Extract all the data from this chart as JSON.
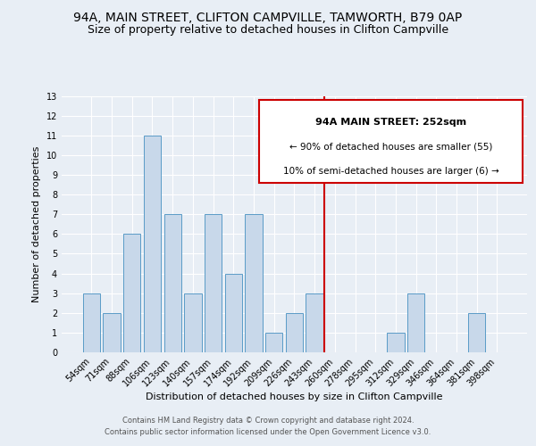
{
  "title": "94A, MAIN STREET, CLIFTON CAMPVILLE, TAMWORTH, B79 0AP",
  "subtitle": "Size of property relative to detached houses in Clifton Campville",
  "xlabel": "Distribution of detached houses by size in Clifton Campville",
  "ylabel": "Number of detached properties",
  "bin_labels": [
    "54sqm",
    "71sqm",
    "88sqm",
    "106sqm",
    "123sqm",
    "140sqm",
    "157sqm",
    "174sqm",
    "192sqm",
    "209sqm",
    "226sqm",
    "243sqm",
    "260sqm",
    "278sqm",
    "295sqm",
    "312sqm",
    "329sqm",
    "346sqm",
    "364sqm",
    "381sqm",
    "398sqm"
  ],
  "bar_heights": [
    3,
    2,
    6,
    11,
    7,
    3,
    7,
    4,
    7,
    1,
    2,
    3,
    0,
    0,
    0,
    1,
    3,
    0,
    0,
    2,
    0
  ],
  "bar_color": "#c8d8ea",
  "bar_edge_color": "#5a9bc7",
  "vline_x": 11.5,
  "vline_color": "#cc0000",
  "annotation_title": "94A MAIN STREET: 252sqm",
  "annotation_line1": "← 90% of detached houses are smaller (55)",
  "annotation_line2": "10% of semi-detached houses are larger (6) →",
  "annotation_box_facecolor": "#ffffff",
  "annotation_box_edgecolor": "#cc0000",
  "ylim": [
    0,
    13
  ],
  "yticks": [
    0,
    1,
    2,
    3,
    4,
    5,
    6,
    7,
    8,
    9,
    10,
    11,
    12,
    13
  ],
  "footer1": "Contains HM Land Registry data © Crown copyright and database right 2024.",
  "footer2": "Contains public sector information licensed under the Open Government Licence v3.0.",
  "bg_color": "#e8eef5",
  "grid_color": "#ffffff",
  "title_fontsize": 10,
  "subtitle_fontsize": 9,
  "axis_label_fontsize": 8,
  "tick_fontsize": 7,
  "ann_title_fontsize": 8,
  "ann_text_fontsize": 7.5,
  "footer_fontsize": 6
}
